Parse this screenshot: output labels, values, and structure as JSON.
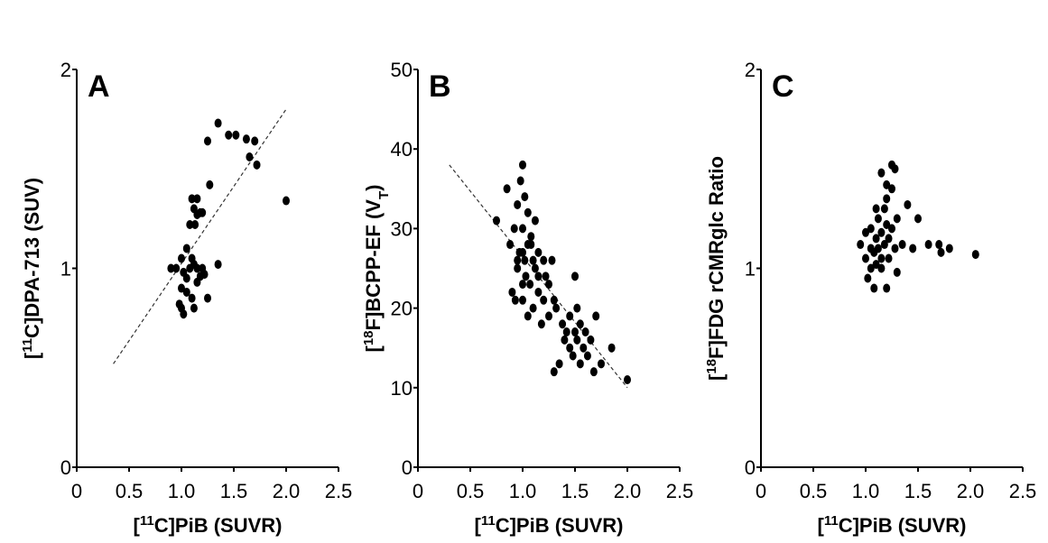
{
  "chart_data": [
    {
      "type": "scatter",
      "title": "A",
      "x_label": "[11C]PiB (SUVR)",
      "x_label_parts": [
        {
          "text": "["
        },
        {
          "text": "11",
          "shift": "super"
        },
        {
          "text": "C]PiB (SUVR)"
        }
      ],
      "y_label_parts": [
        {
          "text": "["
        },
        {
          "text": "11",
          "shift": "super"
        },
        {
          "text": "C]DPA-713 (SUV)"
        }
      ],
      "color": "#000000",
      "x": [
        1.35,
        1.45,
        1.52,
        1.62,
        1.7,
        1.65,
        1.72,
        1.25,
        1.27,
        1.1,
        1.15,
        1.12,
        1.18,
        1.08,
        1.13,
        1.15,
        1.2,
        1.05,
        1.1,
        1.0,
        0.95,
        0.9,
        1.02,
        1.08,
        1.12,
        1.15,
        1.2,
        1.22,
        1.18,
        1.0,
        1.05,
        1.1,
        1.12,
        1.25,
        1.0,
        1.02,
        0.98,
        1.35,
        2.0,
        1.05,
        1.15
      ],
      "values": [
        1.73,
        1.67,
        1.67,
        1.65,
        1.64,
        1.56,
        1.52,
        1.64,
        1.42,
        1.35,
        1.35,
        1.3,
        1.28,
        1.22,
        1.22,
        1.27,
        1.28,
        1.1,
        1.05,
        1.05,
        1.0,
        1.0,
        0.98,
        1.0,
        1.02,
        1.0,
        1.0,
        0.97,
        0.96,
        0.9,
        0.88,
        0.85,
        0.8,
        0.85,
        0.8,
        0.77,
        0.82,
        1.02,
        1.34,
        0.95,
        0.93
      ],
      "trendline": {
        "x": [
          0.35,
          2.0
        ],
        "y": [
          0.52,
          1.8
        ]
      },
      "xlim": [
        0,
        2.5
      ],
      "ylim": [
        0,
        2
      ],
      "xticks": [
        0,
        0.5,
        {
          "value": 1,
          "label": "1.0"
        },
        1.5,
        {
          "value": 2,
          "label": "2.0"
        },
        2.5
      ],
      "yticks": [
        0,
        1,
        2
      ]
    },
    {
      "type": "scatter",
      "title": "B",
      "x_label_parts": [
        {
          "text": "["
        },
        {
          "text": "11",
          "shift": "super"
        },
        {
          "text": "C]PiB (SUVR)"
        }
      ],
      "y_label_parts": [
        {
          "text": "["
        },
        {
          "text": "18",
          "shift": "super"
        },
        {
          "text": "F]BCPP-EF (V"
        },
        {
          "text": "T",
          "shift": "sub"
        },
        {
          "text": ")"
        }
      ],
      "color": "#000000",
      "x": [
        0.75,
        0.85,
        0.88,
        0.9,
        0.92,
        0.95,
        0.95,
        0.97,
        0.98,
        1.0,
        1.0,
        1.0,
        1.02,
        1.02,
        1.03,
        1.05,
        1.05,
        1.05,
        1.07,
        1.08,
        1.1,
        1.1,
        1.12,
        1.12,
        1.15,
        1.15,
        1.18,
        1.2,
        1.2,
        1.22,
        1.25,
        1.25,
        1.28,
        1.3,
        1.3,
        1.32,
        1.35,
        1.38,
        1.4,
        1.42,
        1.45,
        1.45,
        1.48,
        1.5,
        1.5,
        1.52,
        1.55,
        1.55,
        1.58,
        1.6,
        1.62,
        1.65,
        1.68,
        1.7,
        1.75,
        1.85,
        2.0,
        1.52,
        1.0,
        0.95,
        1.08,
        0.93,
        1.0,
        1.15
      ],
      "values": [
        31,
        35,
        28,
        22,
        30,
        25,
        33,
        27,
        36,
        38,
        30,
        21,
        26,
        34,
        24,
        32,
        19,
        28,
        23,
        29,
        26,
        20,
        31,
        25,
        22,
        27,
        18,
        26,
        21,
        24,
        23,
        19,
        26,
        21,
        12,
        20,
        13,
        18,
        16,
        17,
        15,
        19,
        14,
        17,
        24,
        16,
        13,
        18,
        15,
        17,
        14,
        16,
        12,
        19,
        13,
        15,
        11,
        20,
        23,
        26,
        28,
        21,
        27,
        24
      ],
      "trendline": {
        "x": [
          0.3,
          2.0
        ],
        "y": [
          38,
          10
        ]
      },
      "xlim": [
        0,
        2.5
      ],
      "ylim": [
        0,
        50
      ],
      "xticks": [
        0,
        0.5,
        {
          "value": 1,
          "label": "1.0"
        },
        1.5,
        {
          "value": 2,
          "label": "2.0"
        },
        2.5
      ],
      "yticks": [
        0,
        10,
        20,
        30,
        40,
        50
      ]
    },
    {
      "type": "scatter",
      "title": "C",
      "x_label_parts": [
        {
          "text": "["
        },
        {
          "text": "11",
          "shift": "super"
        },
        {
          "text": "C]PiB (SUVR)"
        }
      ],
      "y_label_parts": [
        {
          "text": "["
        },
        {
          "text": "18",
          "shift": "super"
        },
        {
          "text": "F]FDG rCMRglc Ratio"
        }
      ],
      "color": "#000000",
      "x": [
        0.95,
        1.0,
        1.0,
        1.02,
        1.05,
        1.05,
        1.08,
        1.08,
        1.1,
        1.1,
        1.12,
        1.12,
        1.15,
        1.15,
        1.15,
        1.18,
        1.18,
        1.2,
        1.2,
        1.2,
        1.22,
        1.22,
        1.25,
        1.25,
        1.28,
        1.28,
        1.3,
        1.3,
        1.05,
        1.1,
        1.2,
        1.35,
        1.4,
        1.45,
        1.5,
        1.6,
        1.7,
        1.72,
        1.8,
        2.05,
        1.25,
        1.15
      ],
      "values": [
        1.12,
        1.05,
        1.18,
        0.95,
        1.1,
        1.2,
        0.9,
        1.08,
        1.15,
        1.02,
        1.25,
        1.1,
        1.48,
        1.18,
        1.05,
        1.3,
        1.12,
        1.42,
        1.22,
        0.9,
        1.15,
        1.05,
        1.52,
        1.2,
        1.5,
        1.1,
        1.25,
        0.98,
        1.0,
        1.3,
        1.35,
        1.12,
        1.32,
        1.1,
        1.25,
        1.12,
        1.12,
        1.08,
        1.1,
        1.07,
        1.4,
        1.0
      ],
      "xlim": [
        0,
        2.5
      ],
      "ylim": [
        0,
        2
      ],
      "xticks": [
        0,
        0.5,
        {
          "value": 1,
          "label": "1.0"
        },
        1.5,
        {
          "value": 2,
          "label": "2.0"
        },
        2.5
      ],
      "yticks": [
        0,
        1,
        2
      ]
    }
  ]
}
